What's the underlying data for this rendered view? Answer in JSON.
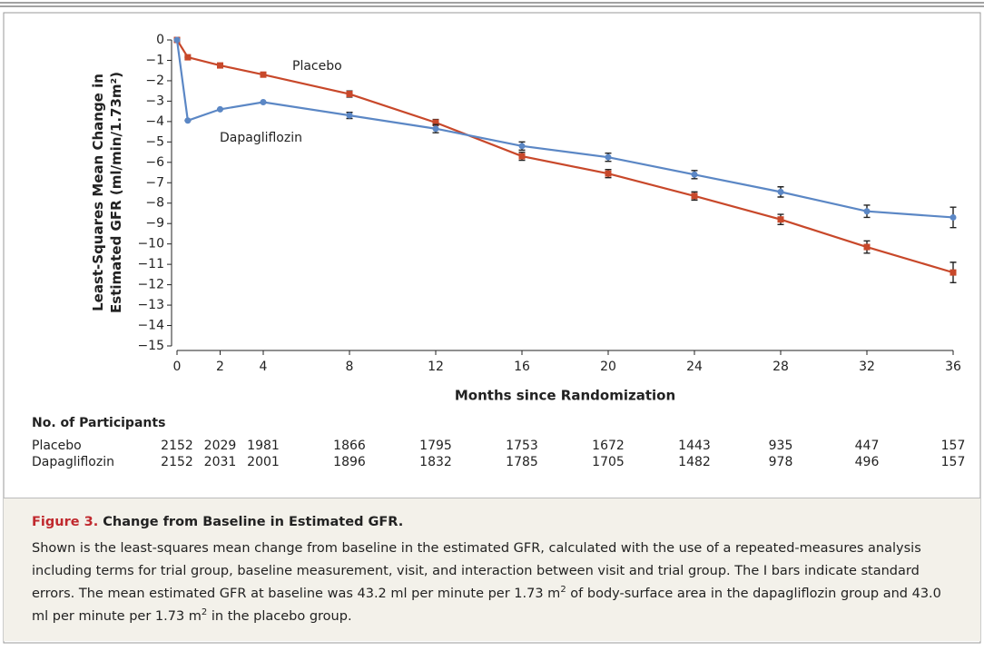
{
  "chart_data": {
    "type": "line",
    "ylabel": [
      "Least-Squares Mean Change in",
      "Estimated GFR (ml/min/1.73m²)"
    ],
    "xlabel": "Months since Randomization",
    "x": [
      0,
      0.5,
      2,
      4,
      8,
      12,
      16,
      20,
      24,
      28,
      32,
      36
    ],
    "xlim": [
      0,
      36
    ],
    "xticks": [
      0,
      2,
      4,
      8,
      12,
      16,
      20,
      24,
      28,
      32,
      36
    ],
    "ylim": [
      -15,
      0
    ],
    "yticks": [
      0,
      {
        "value": -1,
        "label": "−1"
      },
      {
        "value": -2,
        "label": "−2"
      },
      {
        "value": -3,
        "label": "−3"
      },
      {
        "value": -4,
        "label": "−4"
      },
      {
        "value": -5,
        "label": "−5"
      },
      {
        "value": -6,
        "label": "−6"
      },
      {
        "value": -7,
        "label": "−7"
      },
      {
        "value": -8,
        "label": "−8"
      },
      {
        "value": -9,
        "label": "−9"
      },
      {
        "value": -10,
        "label": "−10"
      },
      {
        "value": -11,
        "label": "−11"
      },
      {
        "value": -12,
        "label": "−12"
      },
      {
        "value": -13,
        "label": "−13"
      },
      {
        "value": -14,
        "label": "−14"
      },
      {
        "value": -15,
        "label": "−15"
      }
    ],
    "series": [
      {
        "name": "Placebo",
        "color": "#c8482a",
        "marker": "square",
        "values": [
          0,
          -0.85,
          -1.25,
          -1.7,
          -2.65,
          -4.05,
          -5.7,
          -6.55,
          -7.65,
          -8.8,
          -10.15,
          -11.4
        ],
        "errors": [
          0,
          0,
          0,
          0,
          0.15,
          0.15,
          0.2,
          0.2,
          0.2,
          0.25,
          0.3,
          0.5
        ]
      },
      {
        "name": "Dapagliflozin",
        "color": "#5b87c5",
        "marker": "circle",
        "values": [
          0,
          -3.95,
          -3.4,
          -3.05,
          -3.7,
          -4.35,
          -5.2,
          -5.75,
          -6.6,
          -7.45,
          -8.4,
          -8.7
        ],
        "errors": [
          0,
          0,
          0,
          0,
          0.15,
          0.2,
          0.2,
          0.2,
          0.2,
          0.25,
          0.3,
          0.5
        ]
      }
    ]
  },
  "participants": {
    "title": "No. of Participants",
    "rows": [
      {
        "name": "Placebo",
        "counts": [
          "2152",
          "2029",
          "1981",
          "1866",
          "1795",
          "1753",
          "1672",
          "1443",
          "935",
          "447",
          "157"
        ]
      },
      {
        "name": "Dapagliflozin",
        "counts": [
          "2152",
          "2031",
          "2001",
          "1896",
          "1832",
          "1785",
          "1705",
          "1482",
          "978",
          "496",
          "157"
        ]
      }
    ]
  },
  "caption": {
    "label": "Figure 3.",
    "title": "Change from Baseline in Estimated GFR.",
    "body": [
      "Shown is the least-squares mean change from baseline in the estimated GFR, calculated with the use of a repeated-measures analysis including terms for trial group, baseline measurement, visit, and interaction between visit and trial group. The I bars indicate standard errors. The mean estimated GFR at baseline was 43.2 ml per minute per 1.73 m",
      "2",
      " of body-surface area in the dapagliflozin group and 43.0 ml per minute per 1.73 m",
      "2",
      " in the placebo group."
    ]
  }
}
